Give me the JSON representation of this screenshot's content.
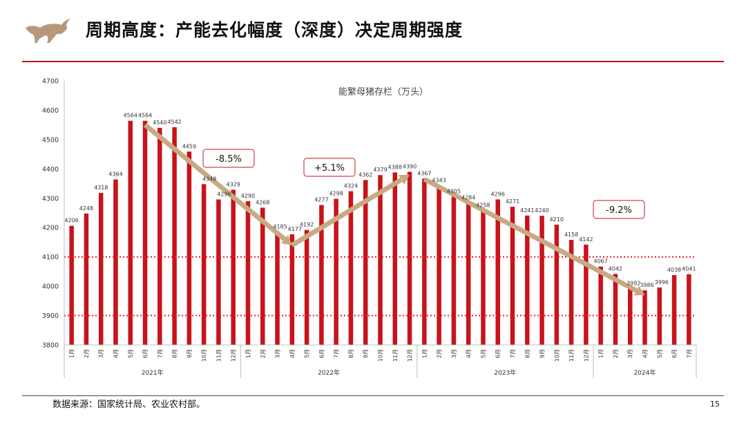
{
  "slide": {
    "title": "周期高度：产能去化幅度（深度）决定周期强度",
    "source": "数据来源：国家统计局、农业农村部。",
    "page_number": "15"
  },
  "colors": {
    "bar": "#c8131b",
    "trend_arrow": "#c7aa84",
    "reference_line": "#e8141b",
    "accent_rule": "#c0141b",
    "logo": "#b8977a"
  },
  "chart_data": {
    "type": "bar",
    "title": "能繁母猪存栏（万头）",
    "ylim": [
      3800,
      4700
    ],
    "yticks": [
      3800,
      3900,
      4000,
      4100,
      4200,
      4300,
      4400,
      4500,
      4600,
      4700
    ],
    "categories": [
      "1月",
      "2月",
      "3月",
      "4月",
      "5月",
      "6月",
      "7月",
      "8月",
      "9月",
      "10月",
      "11月",
      "12月",
      "1月",
      "2月",
      "3月",
      "4月",
      "5月",
      "6月",
      "7月",
      "8月",
      "9月",
      "10月",
      "11月",
      "12月",
      "1月",
      "2月",
      "3月",
      "4月",
      "5月",
      "6月",
      "7月",
      "8月",
      "9月",
      "10月",
      "11月",
      "12月",
      "1月",
      "2月",
      "3月",
      "4月",
      "5月",
      "6月",
      "7月"
    ],
    "values": [
      4206,
      4248,
      4318,
      4364,
      4564,
      4564,
      4540,
      4542,
      4459,
      4348,
      4296,
      4329,
      4290,
      4268,
      4185,
      4177,
      4192,
      4277,
      4298,
      4324,
      4362,
      4379,
      4388,
      4390,
      4367,
      4343,
      4305,
      4284,
      4258,
      4296,
      4271,
      4241,
      4240,
      4210,
      4158,
      4142,
      4067,
      4042,
      3992,
      3986,
      3996,
      4038,
      4041
    ],
    "data_labels": [
      "4206",
      "4248",
      "4318",
      "4364",
      "4564",
      "4564",
      "4540",
      "4542",
      "4459",
      "4348",
      "4296",
      "4329",
      "4290",
      "4268",
      "4185",
      "4177",
      "4192",
      "4277",
      "4298",
      "4324",
      "4362",
      "4379",
      "4388",
      "4390",
      "4367",
      "4343",
      "4305",
      "4284",
      "4258",
      "4296",
      "4271",
      "4241",
      "4240",
      "4210",
      "4158",
      "4142",
      "4067",
      "4042",
      "3992",
      "3986",
      "3996",
      "4038",
      "4041"
    ],
    "year_groups": [
      {
        "label": "2021年",
        "start": 0,
        "count": 12
      },
      {
        "label": "2022年",
        "start": 12,
        "count": 12
      },
      {
        "label": "2023年",
        "start": 24,
        "count": 12
      },
      {
        "label": "2024年",
        "start": 36,
        "count": 7
      }
    ],
    "reference_lines": [
      4100,
      3900
    ],
    "trend_arrows": [
      {
        "from_index": 5,
        "from_value": 4550,
        "to_index": 15,
        "to_value": 4140,
        "label": "-8.5%"
      },
      {
        "from_index": 15,
        "from_value": 4140,
        "to_index": 23,
        "to_value": 4380,
        "label": "+5.1%"
      },
      {
        "from_index": 24,
        "from_value": 4365,
        "to_index": 39,
        "to_value": 3970,
        "label": "-9.2%"
      }
    ]
  }
}
